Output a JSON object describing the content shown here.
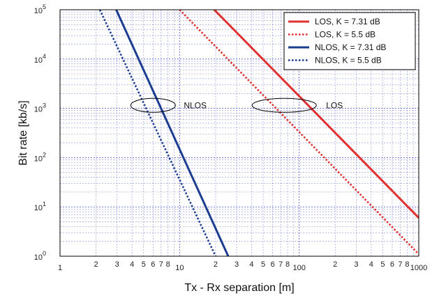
{
  "chart_data": {
    "type": "line",
    "xlabel": "Tx - Rx separation [m]",
    "ylabel": "Bit rate [kb/s]",
    "xscale": "log",
    "yscale": "log",
    "xlim": [
      1,
      1000
    ],
    "ylim": [
      1,
      100000
    ],
    "grid": true,
    "legend_position": "top-right",
    "x_major_ticks": [
      {
        "value": 1,
        "label": "1"
      },
      {
        "value": 10,
        "label": "10"
      },
      {
        "value": 100,
        "label": "100"
      },
      {
        "value": 1000,
        "label": "1000"
      }
    ],
    "x_minor_labels": [
      "2",
      "3",
      "4",
      "5",
      "6",
      "7",
      "8"
    ],
    "y_ticks": [
      {
        "value": 1,
        "base": "10",
        "exp": "0"
      },
      {
        "value": 10,
        "base": "10",
        "exp": "1"
      },
      {
        "value": 100,
        "base": "10",
        "exp": "2"
      },
      {
        "value": 1000,
        "base": "10",
        "exp": "3"
      },
      {
        "value": 10000,
        "base": "10",
        "exp": "4"
      },
      {
        "value": 100000,
        "base": "10",
        "exp": "5"
      }
    ],
    "series": [
      {
        "name": "LOS, K = 7.31 dB",
        "color": "#e03030",
        "style": "solid",
        "x": [
          19.5,
          1000
        ],
        "y": [
          100000,
          6
        ]
      },
      {
        "name": "LOS, K = 5.5 dB",
        "color": "#e03030",
        "style": "dotted",
        "x": [
          10,
          1000
        ],
        "y": [
          100000,
          1.1
        ]
      },
      {
        "name": "NLOS, K = 7.31 dB",
        "color": "#1c3d8f",
        "style": "solid",
        "x": [
          2.95,
          25.5
        ],
        "y": [
          100000,
          1
        ]
      },
      {
        "name": "NLOS, K = 5.5 dB",
        "color": "#1c3d8f",
        "style": "dotted",
        "x": [
          2.15,
          20
        ],
        "y": [
          100000,
          1
        ]
      }
    ],
    "annotations": [
      {
        "text": "NLOS",
        "center_x": 6.0,
        "center_y": 1150
      },
      {
        "text": "LOS",
        "center_x": 75,
        "center_y": 1150
      }
    ]
  }
}
